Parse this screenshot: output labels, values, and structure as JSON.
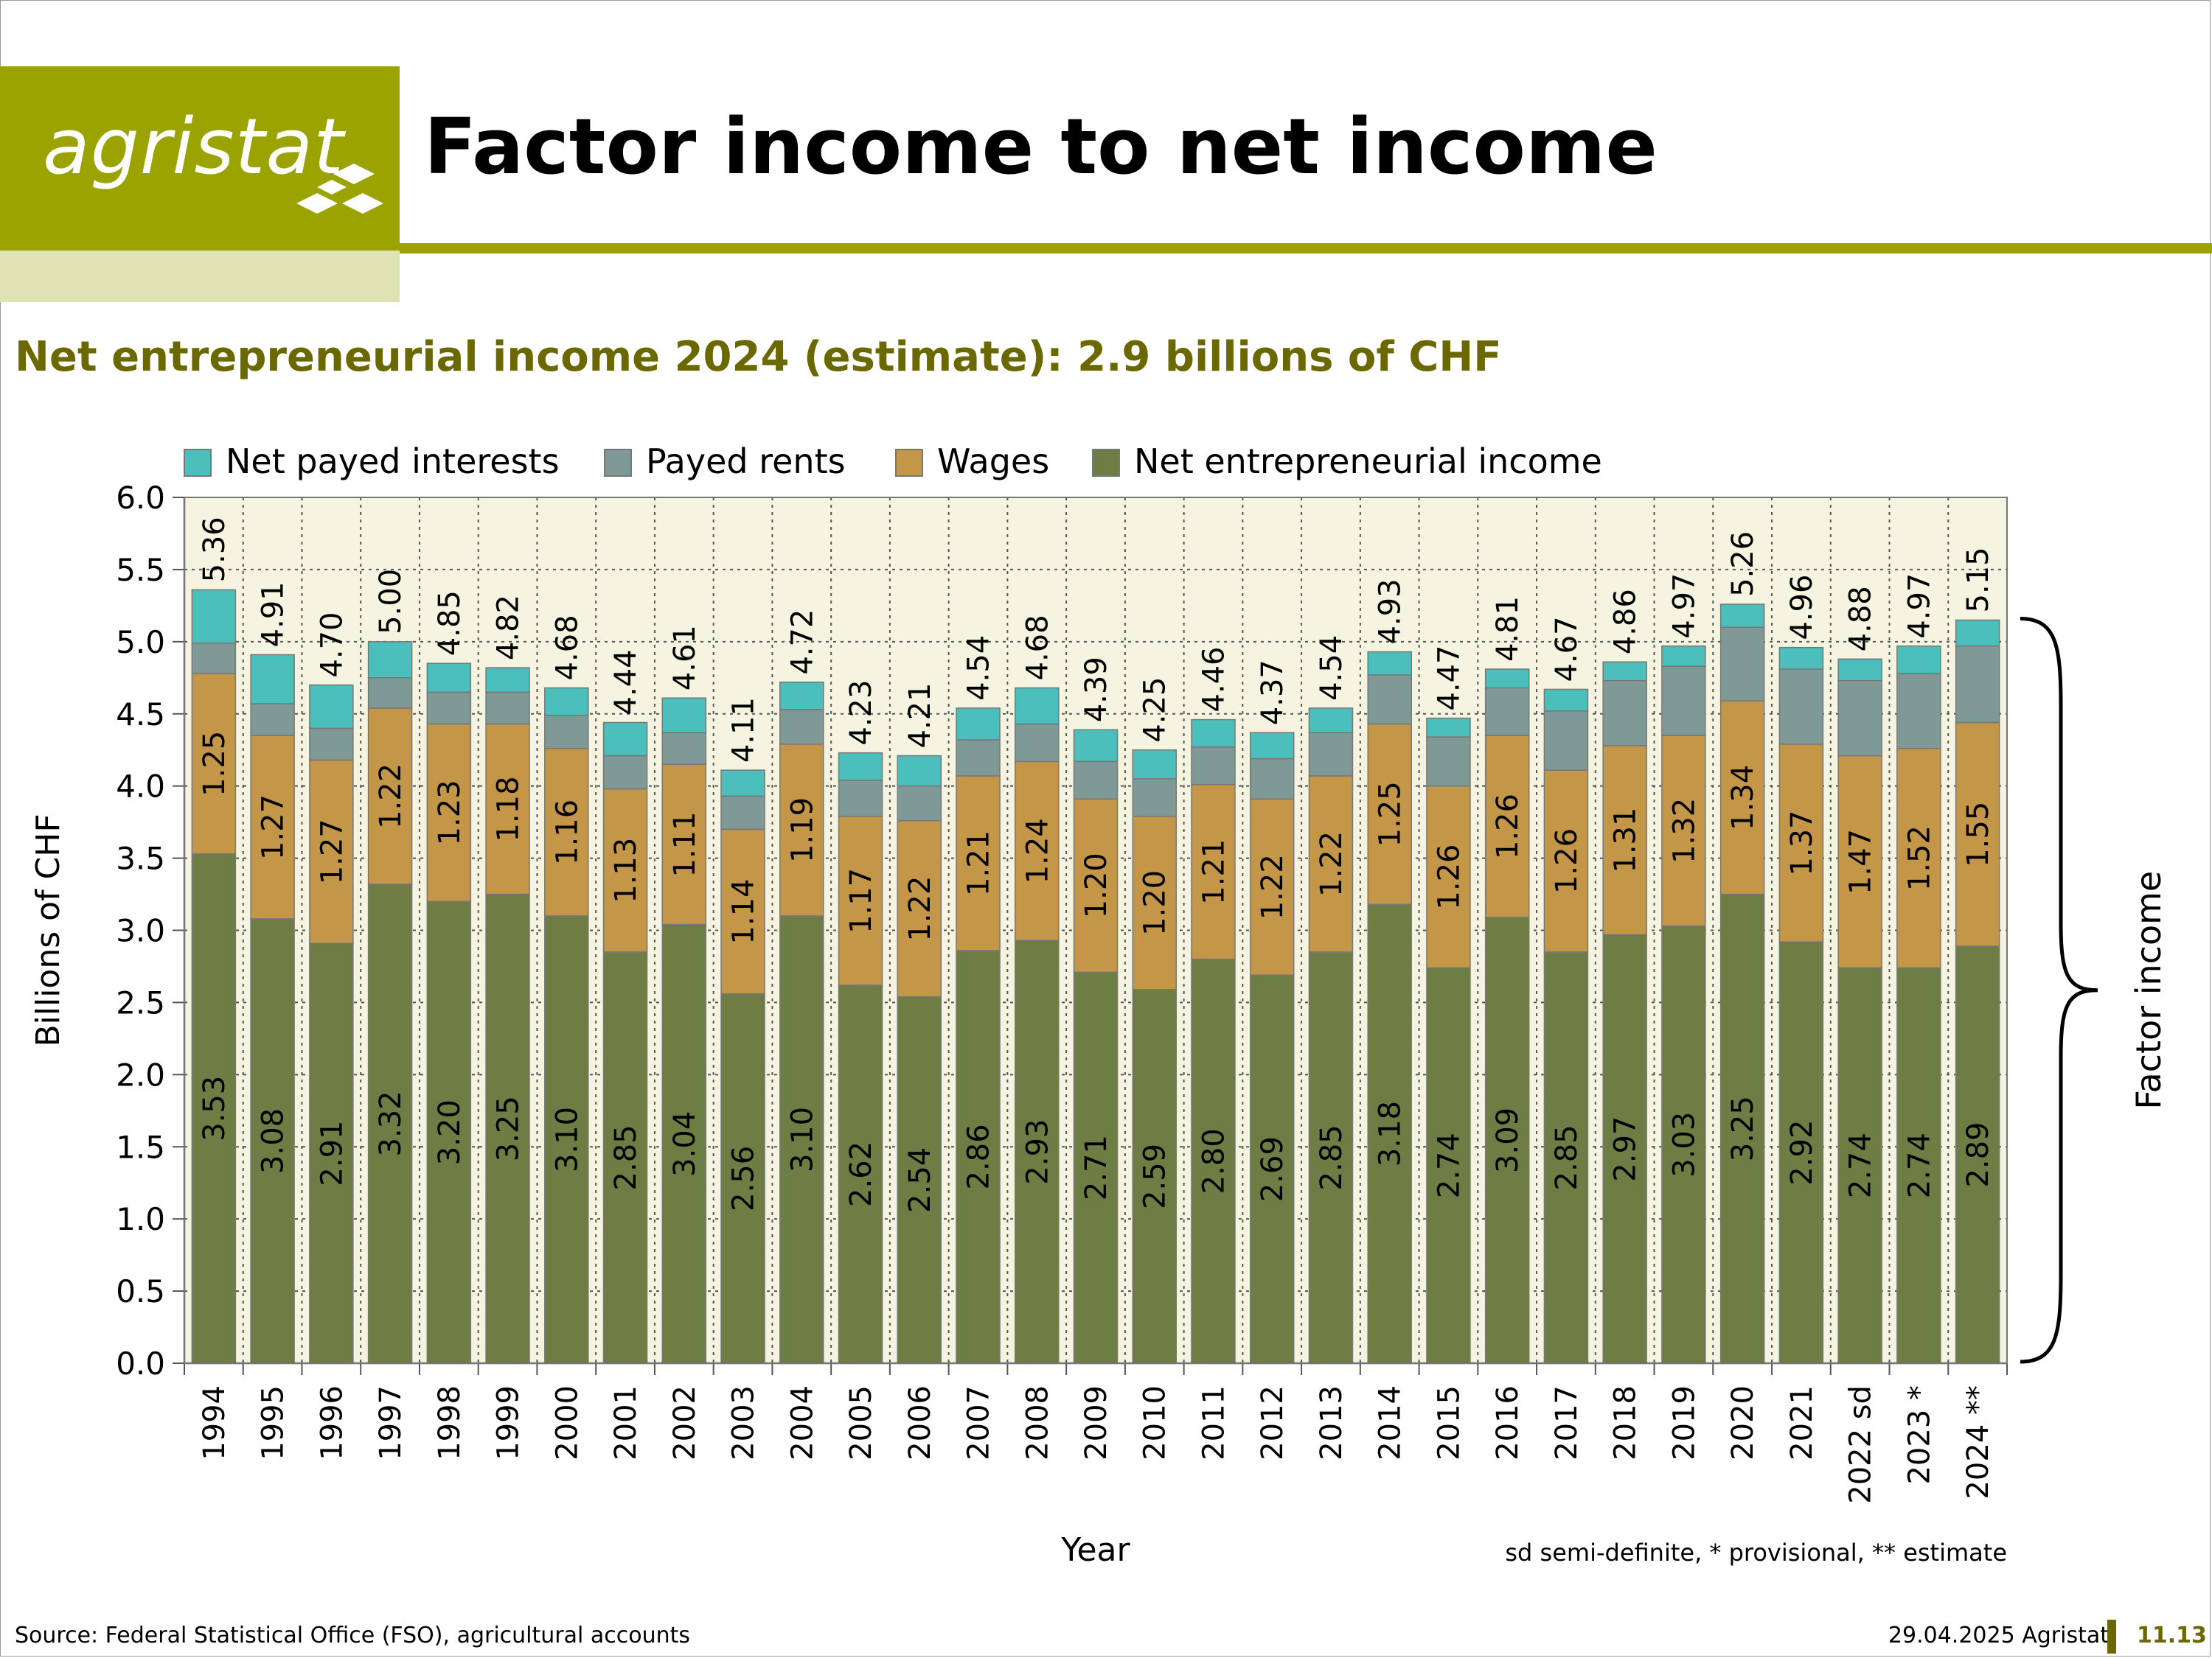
{
  "header": {
    "logo_text": "agristat",
    "title": "Factor income to net income"
  },
  "subtitle": "Net entrepreneurial income 2024 (estimate): 2.9 billions of CHF",
  "footer": {
    "source": "Source: Federal Statistical Office (FSO), agricultural accounts",
    "date": "29.04.2025 Agristat",
    "page": "11.13"
  },
  "colors": {
    "brand": "#9aa300",
    "net_entrepreneurial_income": "#6e7d44",
    "wages": "#c49748",
    "payed_rents": "#7f9a96",
    "net_payed_interests": "#4bbfbb",
    "plot_background": "#f4f4e1"
  },
  "chart_data": {
    "type": "bar",
    "stacked": true,
    "xlabel": "Year",
    "ylabel": "Billions of CHF",
    "ylim": [
      0,
      6
    ],
    "yticks": [
      "0.0",
      "0.5",
      "1.0",
      "1.5",
      "2.0",
      "2.5",
      "3.0",
      "3.5",
      "4.0",
      "4.5",
      "5.0",
      "5.5",
      "6.0"
    ],
    "grid": true,
    "legend_position": "top",
    "note": "sd semi-definite, * provisional, ** estimate",
    "bracket_label": "Factor income",
    "categories": [
      "1994",
      "1995",
      "1996",
      "1997",
      "1998",
      "1999",
      "2000",
      "2001",
      "2002",
      "2003",
      "2004",
      "2005",
      "2006",
      "2007",
      "2008",
      "2009",
      "2010",
      "2011",
      "2012",
      "2013",
      "2014",
      "2015",
      "2016",
      "2017",
      "2018",
      "2019",
      "2020",
      "2021",
      "2022 sd",
      "2023 *",
      "2024 **"
    ],
    "series": [
      {
        "name": "Net entrepreneurial income",
        "key": "net_entrepreneurial_income",
        "values": [
          3.53,
          3.08,
          2.91,
          3.32,
          3.2,
          3.25,
          3.1,
          2.85,
          3.04,
          2.56,
          3.1,
          2.62,
          2.54,
          2.86,
          2.93,
          2.71,
          2.59,
          2.8,
          2.69,
          2.85,
          3.18,
          2.74,
          3.09,
          2.85,
          2.97,
          3.03,
          3.25,
          2.92,
          2.74,
          2.74,
          2.89
        ],
        "labels": [
          "3.53",
          "3.08",
          "2.91",
          "3.32",
          "3.20",
          "3.25",
          "3.10",
          "2.85",
          "3.04",
          "2.56",
          "3.10",
          "2.62",
          "2.54",
          "2.86",
          "2.93",
          "2.71",
          "2.59",
          "2.80",
          "2.69",
          "2.85",
          "3.18",
          "2.74",
          "3.09",
          "2.85",
          "2.97",
          "3.03",
          "3.25",
          "2.92",
          "2.74",
          "2.74",
          "2.89"
        ]
      },
      {
        "name": "Wages",
        "key": "wages",
        "values": [
          1.25,
          1.27,
          1.27,
          1.22,
          1.23,
          1.18,
          1.16,
          1.13,
          1.11,
          1.14,
          1.19,
          1.17,
          1.22,
          1.21,
          1.24,
          1.2,
          1.2,
          1.21,
          1.22,
          1.22,
          1.25,
          1.26,
          1.26,
          1.26,
          1.31,
          1.32,
          1.34,
          1.37,
          1.47,
          1.52,
          1.55
        ],
        "labels": [
          "1.25",
          "1.27",
          "1.27",
          "1.22",
          "1.23",
          "1.18",
          "1.16",
          "1.13",
          "1.11",
          "1.14",
          "1.19",
          "1.17",
          "1.22",
          "1.21",
          "1.24",
          "1.20",
          "1.20",
          "1.21",
          "1.22",
          "1.22",
          "1.25",
          "1.26",
          "1.26",
          "1.26",
          "1.31",
          "1.32",
          "1.34",
          "1.37",
          "1.47",
          "1.52",
          "1.55"
        ]
      },
      {
        "name": "Payed rents",
        "key": "payed_rents",
        "values": [
          0.21,
          0.22,
          0.22,
          0.21,
          0.22,
          0.22,
          0.23,
          0.23,
          0.22,
          0.23,
          0.24,
          0.25,
          0.24,
          0.25,
          0.26,
          0.26,
          0.26,
          0.26,
          0.28,
          0.3,
          0.34,
          0.34,
          0.33,
          0.41,
          0.45,
          0.48,
          0.51,
          0.52,
          0.52,
          0.52,
          0.53
        ],
        "labels": []
      },
      {
        "name": "Net payed interests",
        "key": "net_payed_interests",
        "values": [
          0.37,
          0.34,
          0.3,
          0.25,
          0.2,
          0.17,
          0.19,
          0.23,
          0.24,
          0.18,
          0.19,
          0.19,
          0.21,
          0.22,
          0.25,
          0.22,
          0.2,
          0.19,
          0.18,
          0.17,
          0.16,
          0.13,
          0.13,
          0.15,
          0.13,
          0.14,
          0.16,
          0.15,
          0.15,
          0.19,
          0.18
        ],
        "labels": []
      }
    ],
    "totals": [
      "5.36",
      "4.91",
      "4.70",
      "5.00",
      "4.85",
      "4.82",
      "4.68",
      "4.44",
      "4.61",
      "4.11",
      "4.72",
      "4.23",
      "4.21",
      "4.54",
      "4.68",
      "4.39",
      "4.25",
      "4.46",
      "4.37",
      "4.54",
      "4.93",
      "4.47",
      "4.81",
      "4.67",
      "4.86",
      "4.97",
      "5.26",
      "4.96",
      "4.88",
      "4.97",
      "5.15"
    ],
    "legend_order": [
      "net_payed_interests",
      "payed_rents",
      "wages",
      "net_entrepreneurial_income"
    ]
  }
}
